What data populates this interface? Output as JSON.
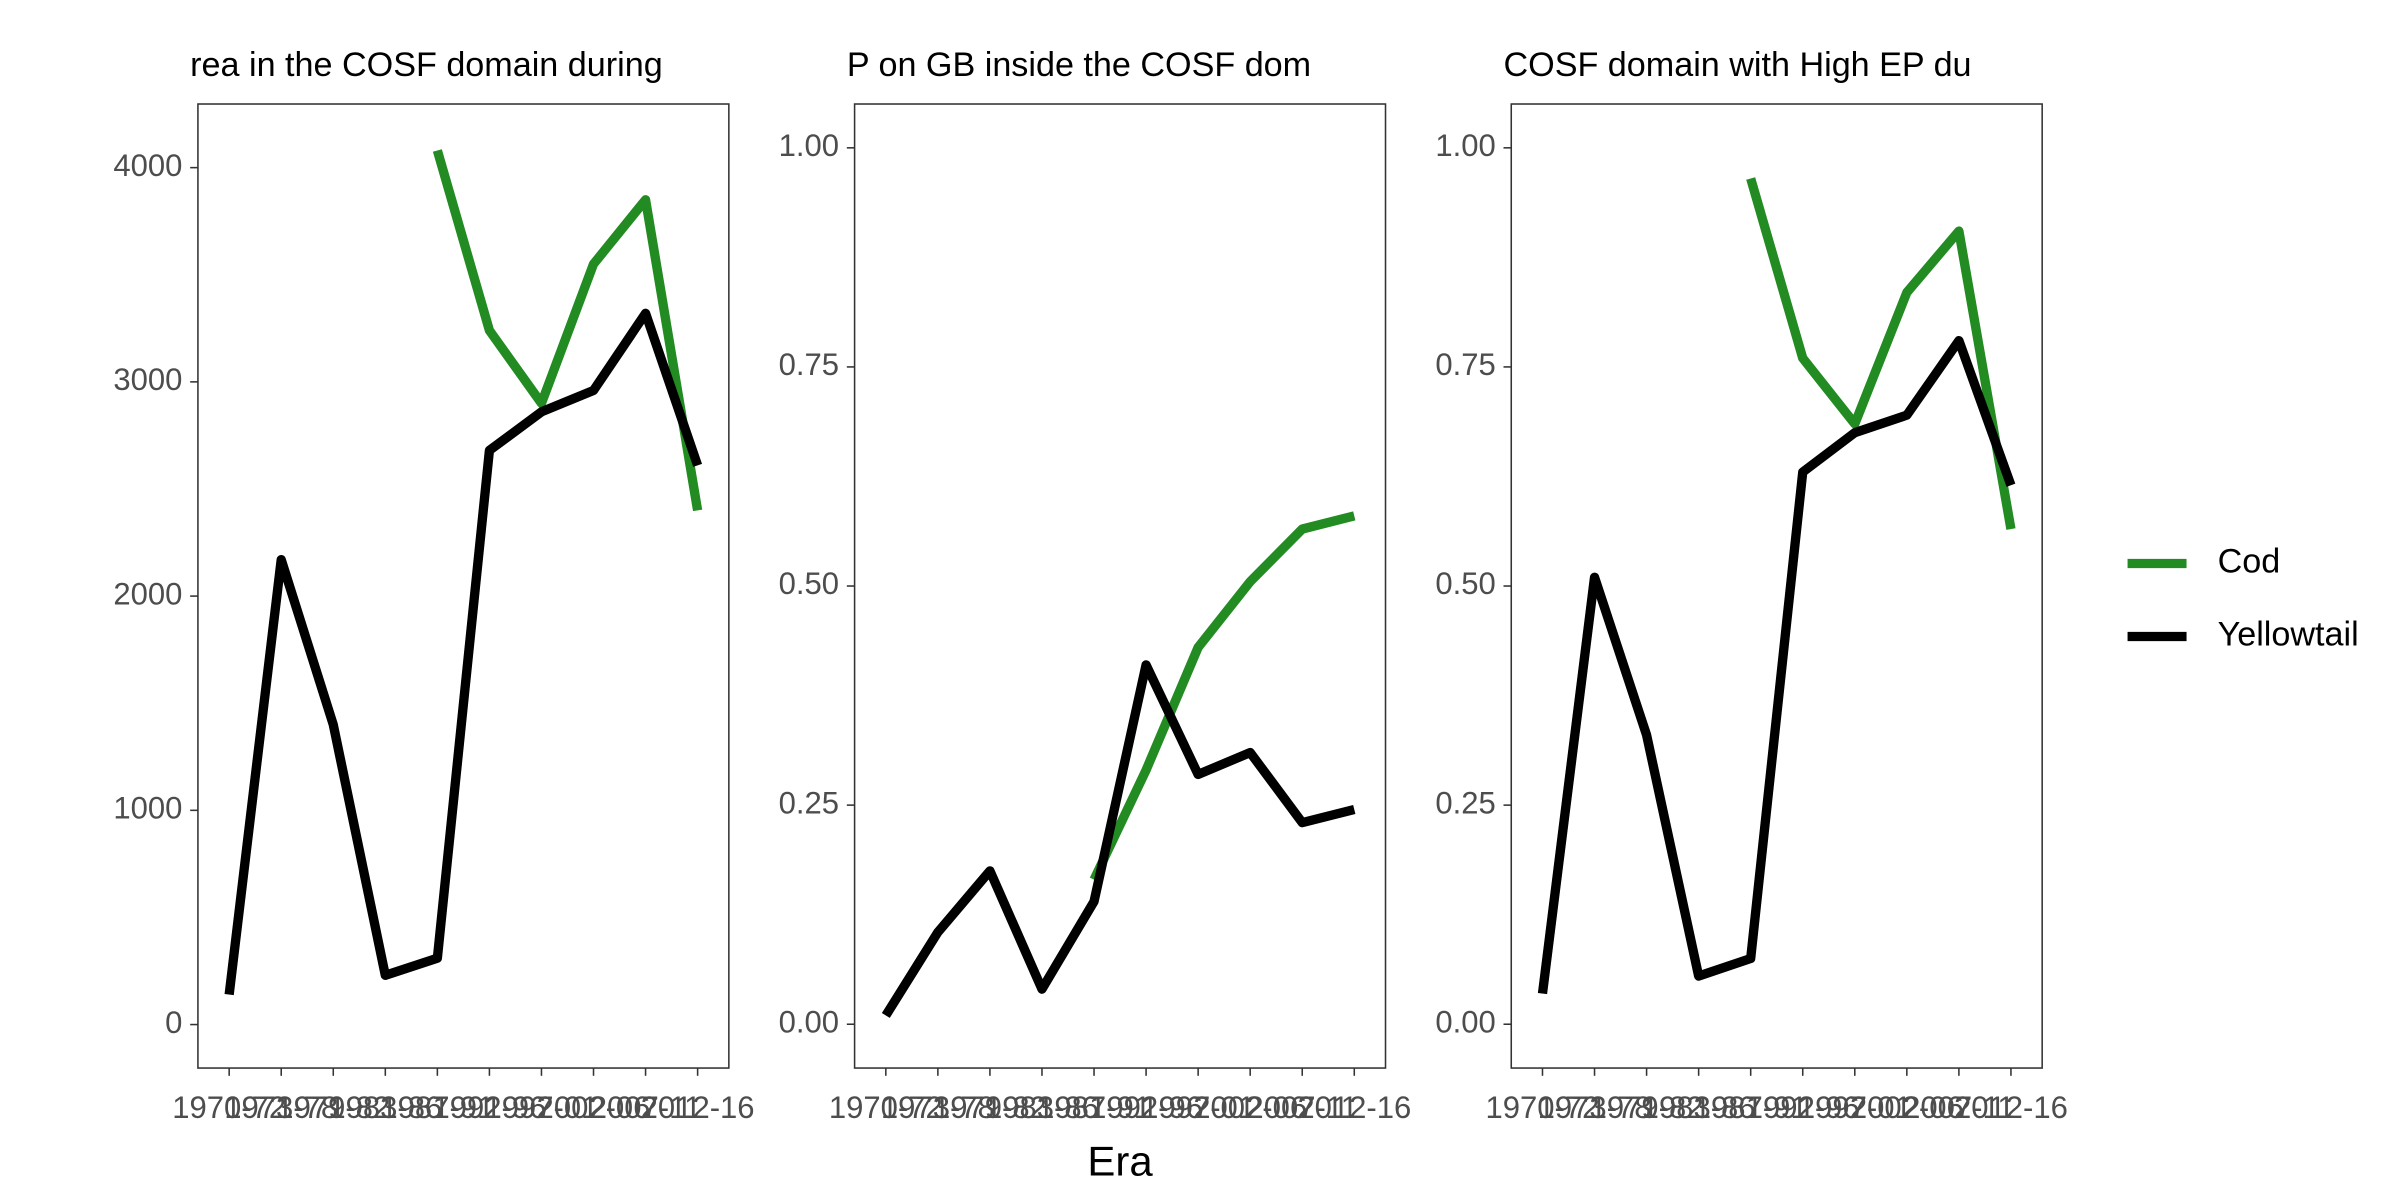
{
  "chart_data": [
    {
      "type": "line",
      "title": "rea in the COSF domain during",
      "categories": [
        "1970-72",
        "1973-78",
        "1979-82",
        "1983-86",
        "1987-91",
        "1992-96",
        "1997-01",
        "2002-06",
        "2007-11",
        "2012-16"
      ],
      "series": [
        {
          "name": "Cod",
          "color": "#228b22",
          "values": [
            null,
            null,
            null,
            null,
            4080,
            3240,
            2900,
            3550,
            3850,
            2400
          ]
        },
        {
          "name": "Yellowtail",
          "color": "#000000",
          "values": [
            140,
            2170,
            1400,
            230,
            310,
            2680,
            2860,
            2960,
            3320,
            2610
          ]
        }
      ],
      "ylim": [
        -203,
        4297
      ],
      "yticks": [
        0,
        1000,
        2000,
        3000,
        4000
      ]
    },
    {
      "type": "line",
      "title": "P on GB inside the COSF dom",
      "x_label": "Era",
      "categories": [
        "1970-72",
        "1973-78",
        "1979-82",
        "1983-86",
        "1987-91",
        "1992-96",
        "1997-01",
        "2002-06",
        "2007-11",
        "2012-16"
      ],
      "series": [
        {
          "name": "Cod",
          "color": "#228b22",
          "values": [
            null,
            null,
            null,
            null,
            0.165,
            0.29,
            0.43,
            0.505,
            0.565,
            0.58
          ]
        },
        {
          "name": "Yellowtail",
          "color": "#000000",
          "values": [
            0.01,
            0.105,
            0.175,
            0.04,
            0.14,
            0.41,
            0.285,
            0.31,
            0.23,
            0.245
          ]
        }
      ],
      "ylim": [
        -0.05,
        1.05
      ],
      "yticks": [
        {
          "value": 0,
          "label": "0.00"
        },
        {
          "value": 0.25,
          "label": "0.25"
        },
        {
          "value": 0.5,
          "label": "0.50"
        },
        {
          "value": 0.75,
          "label": "0.75"
        },
        {
          "value": 1,
          "label": "1.00"
        }
      ]
    },
    {
      "type": "line",
      "title": "COSF domain with High EP du",
      "categories": [
        "1970-72",
        "1973-78",
        "1979-82",
        "1983-86",
        "1987-91",
        "1992-96",
        "1997-01",
        "2002-06",
        "2007-11",
        "2012-16"
      ],
      "series": [
        {
          "name": "Cod",
          "color": "#228b22",
          "values": [
            null,
            null,
            null,
            null,
            0.965,
            0.76,
            0.685,
            0.835,
            0.905,
            0.565
          ]
        },
        {
          "name": "Yellowtail",
          "color": "#000000",
          "values": [
            0.035,
            0.51,
            0.33,
            0.055,
            0.075,
            0.63,
            0.675,
            0.695,
            0.78,
            0.615
          ]
        }
      ],
      "ylim": [
        -0.05,
        1.05
      ],
      "yticks": [
        {
          "value": 0,
          "label": "0.00"
        },
        {
          "value": 0.25,
          "label": "0.25"
        },
        {
          "value": 0.5,
          "label": "0.50"
        },
        {
          "value": 0.75,
          "label": "0.75"
        },
        {
          "value": 1,
          "label": "1.00"
        }
      ]
    }
  ]
}
